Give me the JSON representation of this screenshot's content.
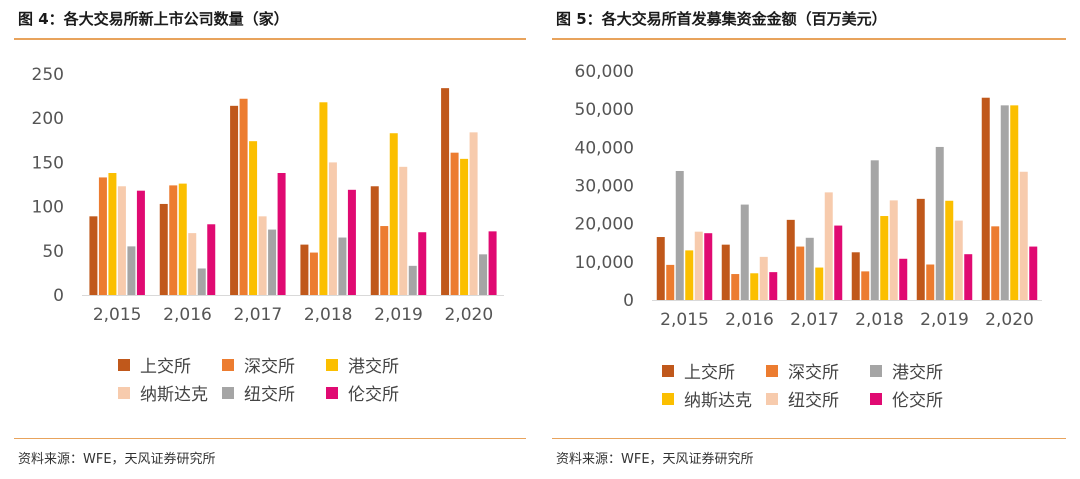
{
  "panels": [
    {
      "title": "图 4：各大交易所新上市公司数量（家）",
      "source": "资料来源：WFE，天风证券研究所",
      "chart_data": {
        "type": "bar",
        "categories": [
          "2,015",
          "2,016",
          "2,017",
          "2,018",
          "2,019",
          "2,020"
        ],
        "ylim": [
          0,
          250
        ],
        "yticks": [
          "0",
          "50",
          "100",
          "150",
          "200",
          "250"
        ],
        "yticks_values": [
          0,
          50,
          100,
          150,
          200,
          250
        ],
        "grid": false,
        "legend_position": "bottom",
        "series": [
          {
            "name": "上交所",
            "color": "#c0581b",
            "values": [
              89,
              103,
              214,
              57,
              123,
              234
            ]
          },
          {
            "name": "深交所",
            "color": "#ec7c30",
            "values": [
              133,
              124,
              222,
              48,
              78,
              161
            ]
          },
          {
            "name": "港交所",
            "color": "#fbbf00",
            "values": [
              138,
              126,
              174,
              218,
              183,
              154
            ]
          },
          {
            "name": "纳斯达克",
            "color": "#f7cbad",
            "values": [
              123,
              70,
              89,
              150,
              145,
              184
            ]
          },
          {
            "name": "纽交所",
            "color": "#a5a5a5",
            "values": [
              55,
              30,
              74,
              65,
              33,
              46
            ]
          },
          {
            "name": "伦交所",
            "color": "#e00a72",
            "values": [
              118,
              80,
              138,
              119,
              71,
              72
            ]
          }
        ]
      }
    },
    {
      "title": "图 5：各大交易所首发募集资金金额（百万美元）",
      "source": "资料来源：WFE，天风证券研究所",
      "chart_data": {
        "type": "bar",
        "categories": [
          "2,015",
          "2,016",
          "2,017",
          "2,018",
          "2,019",
          "2,020"
        ],
        "ylim": [
          0,
          60000
        ],
        "yticks": [
          "0",
          "10,000",
          "20,000",
          "30,000",
          "40,000",
          "50,000",
          "60,000"
        ],
        "yticks_values": [
          0,
          10000,
          20000,
          30000,
          40000,
          50000,
          60000
        ],
        "grid": false,
        "legend_position": "bottom",
        "series": [
          {
            "name": "上交所",
            "color": "#c0581b",
            "values": [
              16500,
              14500,
              21000,
              12500,
              26500,
              53000
            ]
          },
          {
            "name": "深交所",
            "color": "#ec7c30",
            "values": [
              9200,
              6800,
              14000,
              7500,
              9300,
              19300
            ]
          },
          {
            "name": "港交所",
            "color": "#a5a5a5",
            "values": [
              33800,
              25000,
              16300,
              36600,
              40100,
              51000
            ]
          },
          {
            "name": "纳斯达克",
            "color": "#fbbf00",
            "values": [
              13000,
              7000,
              8500,
              22000,
              26000,
              51000
            ]
          },
          {
            "name": "纽交所",
            "color": "#f7cbad",
            "values": [
              17900,
              11300,
              28200,
              26100,
              20800,
              33600
            ]
          },
          {
            "name": "伦交所",
            "color": "#e00a72",
            "values": [
              17500,
              7300,
              19500,
              10800,
              12000,
              14000
            ]
          }
        ]
      }
    }
  ]
}
